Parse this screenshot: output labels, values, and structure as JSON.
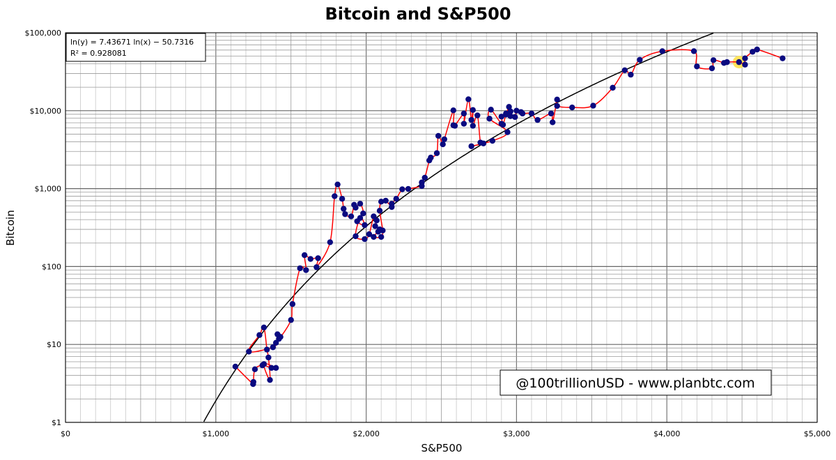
{
  "chart_data": {
    "type": "scatter",
    "title": "Bitcoin and S&P500",
    "xlabel": "S&P500",
    "ylabel": "Bitcoin",
    "xlim": [
      0,
      5000
    ],
    "ylim": [
      1,
      100000
    ],
    "yscale": "log",
    "grid": true,
    "x_ticks": [
      "$0",
      "$1,000",
      "$2,000",
      "$3,000",
      "$4,000",
      "$5,000"
    ],
    "y_ticks": [
      "$1",
      "$10",
      "$100",
      "$1,000",
      "$10,000",
      "$100,000"
    ],
    "regression": {
      "label_line1": "ln(y) = 7.43671 ln(x) − 50.7316",
      "label_line2": "R² = 0.928081",
      "a": 7.43671,
      "b": -50.7316,
      "color": "#000000"
    },
    "annotation": "@100trillionUSD  -  www.planbtc.com",
    "colors": {
      "points": "#0a0a80",
      "path": "#ff0000",
      "highlight": "#ffe14d"
    },
    "highlight_point": [
      4480,
      42000
    ],
    "series": [
      {
        "values": [
          [
            1130,
            5.2
          ],
          [
            1248,
            3.1
          ],
          [
            1250,
            3.3
          ],
          [
            1260,
            4.8
          ],
          [
            1310,
            5.4
          ],
          [
            1370,
            5.0
          ],
          [
            1400,
            5.0
          ],
          [
            1320,
            5.6
          ],
          [
            1360,
            3.5
          ],
          [
            1350,
            6.8
          ],
          [
            1340,
            8.6
          ],
          [
            1320,
            16.5
          ],
          [
            1290,
            13.2
          ],
          [
            1220,
            8.1
          ],
          [
            1380,
            9.2
          ],
          [
            1400,
            10.5
          ],
          [
            1420,
            11.8
          ],
          [
            1410,
            13.5
          ],
          [
            1430,
            12.5
          ],
          [
            1500,
            20.6
          ],
          [
            1510,
            33.0
          ],
          [
            1560,
            95
          ],
          [
            1600,
            90
          ],
          [
            1590,
            140
          ],
          [
            1630,
            125
          ],
          [
            1680,
            128
          ],
          [
            1670,
            98
          ],
          [
            1760,
            205
          ],
          [
            1790,
            800
          ],
          [
            1810,
            1130
          ],
          [
            1840,
            740
          ],
          [
            1850,
            550
          ],
          [
            1860,
            470
          ],
          [
            1900,
            440
          ],
          [
            1920,
            620
          ],
          [
            1930,
            570
          ],
          [
            1960,
            640
          ],
          [
            1980,
            480
          ],
          [
            1940,
            380
          ],
          [
            1990,
            340
          ],
          [
            1960,
            420
          ],
          [
            1930,
            245
          ],
          [
            1990,
            225
          ],
          [
            2020,
            260
          ],
          [
            2050,
            440
          ],
          [
            2070,
            390
          ],
          [
            2060,
            330
          ],
          [
            2090,
            300
          ],
          [
            2080,
            280
          ],
          [
            2050,
            240
          ],
          [
            2100,
            240
          ],
          [
            2110,
            290
          ],
          [
            2090,
            520
          ],
          [
            2100,
            680
          ],
          [
            2130,
            700
          ],
          [
            2170,
            580
          ],
          [
            2170,
            640
          ],
          [
            2200,
            740
          ],
          [
            2240,
            980
          ],
          [
            2280,
            990
          ],
          [
            2370,
            1080
          ],
          [
            2370,
            1200
          ],
          [
            2390,
            1380
          ],
          [
            2420,
            2300
          ],
          [
            2430,
            2500
          ],
          [
            2470,
            2850
          ],
          [
            2480,
            4750
          ],
          [
            2510,
            3700
          ],
          [
            2520,
            4300
          ],
          [
            2580,
            10100
          ],
          [
            2580,
            6500
          ],
          [
            2590,
            6400
          ],
          [
            2650,
            9200
          ],
          [
            2650,
            6800
          ],
          [
            2680,
            14000
          ],
          [
            2700,
            7600
          ],
          [
            2710,
            10200
          ],
          [
            2710,
            6400
          ],
          [
            2740,
            8700
          ],
          [
            2760,
            3900
          ],
          [
            2780,
            3800
          ],
          [
            2700,
            3500
          ],
          [
            2840,
            4100
          ],
          [
            2940,
            5300
          ],
          [
            2820,
            7900
          ],
          [
            2830,
            10300
          ],
          [
            2900,
            6800
          ],
          [
            2900,
            8400
          ],
          [
            2910,
            6600
          ],
          [
            2930,
            9200
          ],
          [
            2930,
            8900
          ],
          [
            2950,
            11200
          ],
          [
            2960,
            9800
          ],
          [
            2960,
            8500
          ],
          [
            2990,
            8300
          ],
          [
            3000,
            10000
          ],
          [
            3030,
            9600
          ],
          [
            3040,
            9200
          ],
          [
            3100,
            9200
          ],
          [
            3140,
            7600
          ],
          [
            3230,
            9200
          ],
          [
            3240,
            7100
          ],
          [
            3270,
            13900
          ],
          [
            3270,
            11500
          ],
          [
            3370,
            11000
          ],
          [
            3510,
            11600
          ],
          [
            3640,
            19700
          ],
          [
            3720,
            33000
          ],
          [
            3760,
            29000
          ],
          [
            3820,
            45000
          ],
          [
            3970,
            58000
          ],
          [
            4180,
            58000
          ],
          [
            4200,
            37000
          ],
          [
            4300,
            35000
          ],
          [
            4310,
            44500
          ],
          [
            4380,
            41000
          ],
          [
            4400,
            42000
          ],
          [
            4480,
            42000
          ],
          [
            4520,
            39000
          ],
          [
            4520,
            47000
          ],
          [
            4570,
            57000
          ],
          [
            4600,
            61000
          ],
          [
            4770,
            47000
          ]
        ]
      }
    ]
  }
}
